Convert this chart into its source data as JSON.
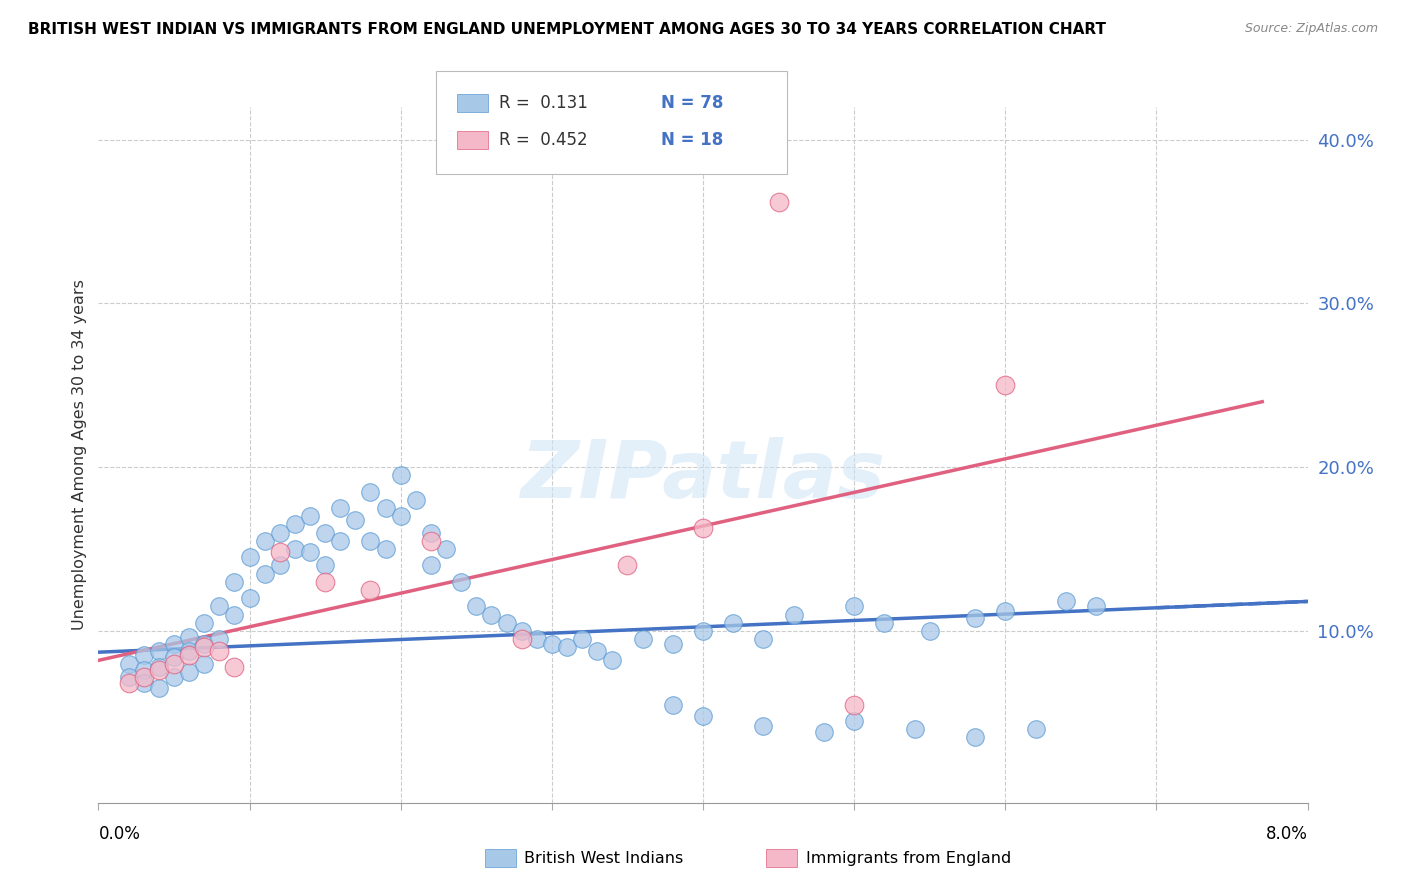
{
  "title": "BRITISH WEST INDIAN VS IMMIGRANTS FROM ENGLAND UNEMPLOYMENT AMONG AGES 30 TO 34 YEARS CORRELATION CHART",
  "source": "Source: ZipAtlas.com",
  "ylabel": "Unemployment Among Ages 30 to 34 years",
  "xlim": [
    0.0,
    0.08
  ],
  "ylim": [
    -0.005,
    0.42
  ],
  "ytick_vals": [
    0.0,
    0.1,
    0.2,
    0.3,
    0.4
  ],
  "ytick_labels": [
    "",
    "10.0%",
    "20.0%",
    "30.0%",
    "40.0%"
  ],
  "xtick_vals": [
    0.0,
    0.01,
    0.02,
    0.03,
    0.04,
    0.05,
    0.06,
    0.07,
    0.08
  ],
  "color_blue": "#a8c8e8",
  "color_blue_edge": "#5b9bd5",
  "color_pink": "#f4b8c8",
  "color_pink_edge": "#e06080",
  "color_blue_line": "#4472c4",
  "color_pink_line": "#e06080",
  "watermark": "ZIPatlas",
  "blue_line_x": [
    0.0,
    0.08
  ],
  "blue_line_y": [
    0.087,
    0.118
  ],
  "pink_line_x": [
    0.0,
    0.077
  ],
  "pink_line_y": [
    0.082,
    0.24
  ],
  "blue_x": [
    0.002,
    0.002,
    0.003,
    0.003,
    0.003,
    0.004,
    0.004,
    0.004,
    0.005,
    0.005,
    0.005,
    0.006,
    0.006,
    0.006,
    0.007,
    0.007,
    0.007,
    0.008,
    0.008,
    0.009,
    0.009,
    0.01,
    0.01,
    0.011,
    0.011,
    0.012,
    0.012,
    0.013,
    0.013,
    0.014,
    0.014,
    0.015,
    0.015,
    0.016,
    0.016,
    0.017,
    0.018,
    0.018,
    0.019,
    0.019,
    0.02,
    0.02,
    0.021,
    0.022,
    0.022,
    0.023,
    0.024,
    0.025,
    0.026,
    0.027,
    0.028,
    0.029,
    0.03,
    0.031,
    0.032,
    0.033,
    0.034,
    0.036,
    0.038,
    0.04,
    0.042,
    0.044,
    0.046,
    0.05,
    0.052,
    0.055,
    0.058,
    0.06,
    0.064,
    0.066,
    0.038,
    0.04,
    0.044,
    0.048,
    0.05,
    0.054,
    0.058,
    0.062
  ],
  "blue_y": [
    0.08,
    0.072,
    0.085,
    0.076,
    0.068,
    0.088,
    0.078,
    0.065,
    0.092,
    0.084,
    0.072,
    0.096,
    0.088,
    0.075,
    0.105,
    0.092,
    0.08,
    0.115,
    0.095,
    0.13,
    0.11,
    0.145,
    0.12,
    0.155,
    0.135,
    0.16,
    0.14,
    0.165,
    0.15,
    0.17,
    0.148,
    0.16,
    0.14,
    0.175,
    0.155,
    0.168,
    0.185,
    0.155,
    0.175,
    0.15,
    0.195,
    0.17,
    0.18,
    0.16,
    0.14,
    0.15,
    0.13,
    0.115,
    0.11,
    0.105,
    0.1,
    0.095,
    0.092,
    0.09,
    0.095,
    0.088,
    0.082,
    0.095,
    0.092,
    0.1,
    0.105,
    0.095,
    0.11,
    0.115,
    0.105,
    0.1,
    0.108,
    0.112,
    0.118,
    0.115,
    0.055,
    0.048,
    0.042,
    0.038,
    0.045,
    0.04,
    0.035,
    0.04
  ],
  "pink_x": [
    0.002,
    0.003,
    0.004,
    0.005,
    0.006,
    0.007,
    0.008,
    0.009,
    0.012,
    0.015,
    0.018,
    0.022,
    0.028,
    0.035,
    0.04,
    0.045,
    0.05,
    0.06
  ],
  "pink_y": [
    0.068,
    0.072,
    0.076,
    0.08,
    0.085,
    0.09,
    0.088,
    0.078,
    0.148,
    0.13,
    0.125,
    0.155,
    0.095,
    0.14,
    0.163,
    0.362,
    0.055,
    0.25
  ]
}
